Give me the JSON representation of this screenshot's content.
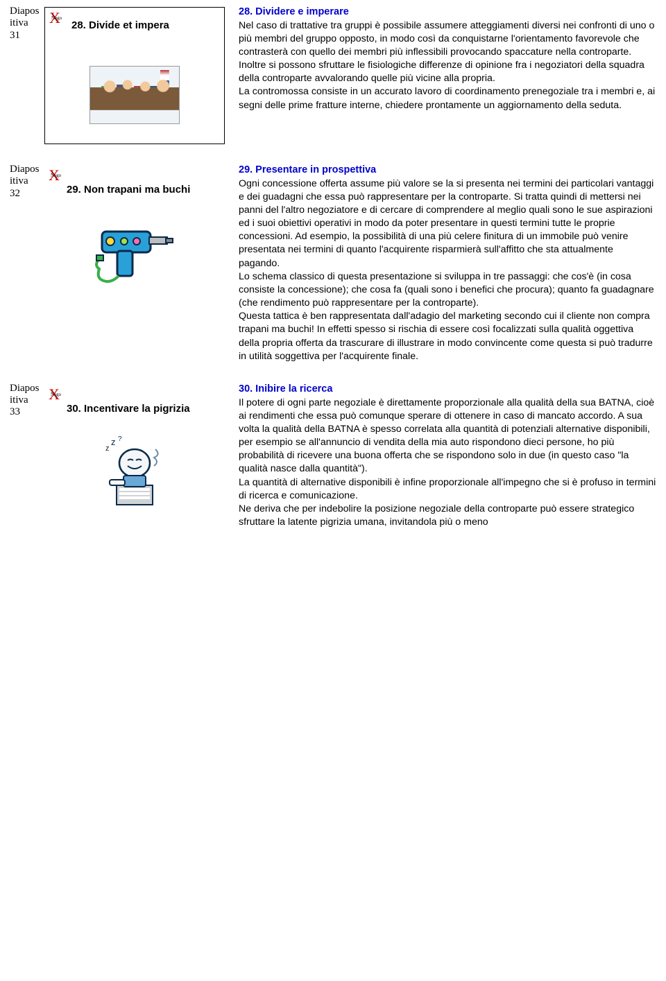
{
  "slides": [
    {
      "label_line1": "Diapos",
      "label_line2": "itiva",
      "label_num": "31",
      "thumb_title": "28. Divide et impera",
      "heading": "28. Dividere e imperare",
      "body": "Nel caso di trattative tra gruppi è possibile assumere atteggiamenti diversi nei confronti di uno o più membri del gruppo opposto, in modo così da conquistarne l'orientamento favorevole che contrasterà con quello dei membri più inflessibili provocando spaccature nella controparte.\nInoltre si possono sfruttare le fisiologiche differenze di opinione fra i negoziatori della squadra della controparte avvalorando quelle più vicine alla propria.\nLa contromossa consiste in un accurato lavoro di coordinamento prenegoziale tra i membri e, ai segni delle prime fratture interne, chiedere prontamente un aggiornamento della seduta."
    },
    {
      "label_line1": "Diapos",
      "label_line2": "itiva",
      "label_num": "32",
      "thumb_title": "29. Non trapani ma buchi",
      "heading": "29. Presentare in prospettiva",
      "body": "Ogni concessione offerta assume più valore se la si presenta nei termini dei particolari vantaggi e dei guadagni che essa può rappresentare per la controparte. Si tratta quindi di mettersi nei panni del l'altro negoziatore e di cercare di comprendere al meglio quali sono le sue aspirazioni ed i suoi obiettivi operativi in modo da poter presentare in questi termini tutte le proprie concessioni. Ad esempio, la possibilità di una più celere finitura di un immobile può venire presentata nei termini di quanto l'acquirente risparmierà sull'affitto che sta attualmente pagando.\nLo schema classico di questa presentazione si sviluppa in tre passaggi: che cos'è (in cosa consiste la concessione); che cosa fa (quali sono i benefici che procura); quanto fa guadagnare (che rendimento può rappresentare per la controparte).\nQuesta tattica è ben rappresentata dall'adagio del marketing secondo cui il cliente non compra trapani ma buchi! In effetti spesso si rischia di essere così focalizzati sulla qualità oggettiva della propria offerta da trascurare di illustrare in modo convincente come questa si può tradurre in utilità soggettiva per l'acquirente finale."
    },
    {
      "label_line1": "Diapos",
      "label_line2": "itiva",
      "label_num": "33",
      "thumb_title": "30. Incentivare la pigrizia",
      "heading": "30. Inibire la ricerca",
      "body": "Il potere di ogni parte negoziale è direttamente proporzionale alla qualità della sua BATNA, cioè ai rendimenti che essa può comunque sperare di ottenere in caso di mancato accordo. A sua volta la qualità della BATNA è spesso correlata alla quantità di potenziali alternative disponibili, per esempio se all'annuncio di vendita della mia auto rispondono dieci persone, ho più probabilità di ricevere una buona offerta che se rispondono solo in due (in questo caso \"la qualità nasce dalla quantità\").\nLa quantità di alternative disponibili è infine proporzionale all'impegno che si è profuso in termini di ricerca e comunicazione.\nNe deriva che per indebolire la posizione negoziale della controparte può essere strategico sfruttare la latente pigrizia umana, invitandola più o meno"
    }
  ],
  "logo_text": "Nego",
  "colors": {
    "heading": "#0000cc",
    "logo_x": "#c00000",
    "background": "#ffffff",
    "text": "#000000"
  }
}
